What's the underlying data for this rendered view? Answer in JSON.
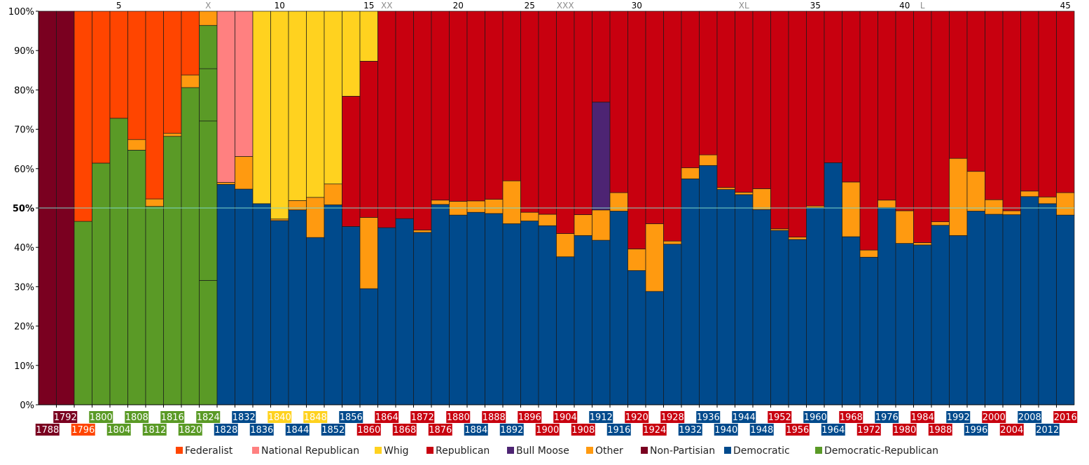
{
  "chart_data": {
    "type": "bar",
    "stacked": true,
    "ylim": [
      0,
      100
    ],
    "y_ticks": [
      "0%",
      "10%",
      "20%",
      "30%",
      "40%",
      "50%",
      "60%",
      "70%",
      "80%",
      "90%",
      "100%"
    ],
    "reference_line": 50,
    "ordinal_labels": [
      {
        "index": 4,
        "text": "5"
      },
      {
        "index": 9,
        "text": "X"
      },
      {
        "index": 13,
        "text": "10"
      },
      {
        "index": 18,
        "text": "15"
      },
      {
        "index": 19,
        "text": "XX"
      },
      {
        "index": 23,
        "text": "20"
      },
      {
        "index": 27,
        "text": "25"
      },
      {
        "index": 29,
        "text": "XXX"
      },
      {
        "index": 33,
        "text": "30"
      },
      {
        "index": 39,
        "text": "XL"
      },
      {
        "index": 43,
        "text": "35"
      },
      {
        "index": 48,
        "text": "40"
      },
      {
        "index": 49,
        "text": "L"
      },
      {
        "index": 57,
        "text": "45"
      }
    ],
    "parties": [
      {
        "key": "fed",
        "name": "Federalist",
        "color": "#ff4500"
      },
      {
        "key": "nr",
        "name": "National Republican",
        "color": "#ff8080"
      },
      {
        "key": "whig",
        "name": "Whig",
        "color": "#ffd21f"
      },
      {
        "key": "rep",
        "name": "Republican",
        "color": "#c8000f"
      },
      {
        "key": "bm",
        "name": "Bull Moose",
        "color": "#4d2473"
      },
      {
        "key": "oth",
        "name": "Other",
        "color": "#ff9a10"
      },
      {
        "key": "np",
        "name": "Non-Partisian",
        "color": "#7a0020"
      },
      {
        "key": "dem",
        "name": "Democratic",
        "color": "#004a8c"
      },
      {
        "key": "dr",
        "name": "Democratic-Republican",
        "color": "#5a9a26"
      }
    ],
    "elections": [
      {
        "year": "1788",
        "winner": "np",
        "segments": [
          [
            "np",
            100
          ]
        ]
      },
      {
        "year": "1792",
        "winner": "np",
        "segments": [
          [
            "np",
            100
          ]
        ]
      },
      {
        "year": "1796",
        "winner": "fed",
        "segments": [
          [
            "dr",
            46.6
          ],
          [
            "fed",
            53.4
          ]
        ]
      },
      {
        "year": "1800",
        "winner": "dr",
        "segments": [
          [
            "dr",
            61.4
          ],
          [
            "fed",
            38.6
          ]
        ]
      },
      {
        "year": "1804",
        "winner": "dr",
        "segments": [
          [
            "dr",
            72.8
          ],
          [
            "fed",
            27.2
          ]
        ]
      },
      {
        "year": "1808",
        "winner": "dr",
        "segments": [
          [
            "dr",
            64.7
          ],
          [
            "oth",
            2.7
          ],
          [
            "fed",
            32.6
          ]
        ]
      },
      {
        "year": "1812",
        "winner": "dr",
        "segments": [
          [
            "dr",
            50.4
          ],
          [
            "oth",
            1.9
          ],
          [
            "fed",
            47.7
          ]
        ]
      },
      {
        "year": "1816",
        "winner": "dr",
        "segments": [
          [
            "dr",
            68.2
          ],
          [
            "oth",
            0.8
          ],
          [
            "fed",
            31.0
          ]
        ]
      },
      {
        "year": "1820",
        "winner": "dr",
        "segments": [
          [
            "dr",
            80.6
          ],
          [
            "oth",
            3.2
          ],
          [
            "fed",
            16.2
          ]
        ]
      },
      {
        "year": "1824",
        "winner": "dr",
        "segments": [
          [
            "dr",
            31.6
          ],
          [
            "dr",
            40.5
          ],
          [
            "dr",
            13.3
          ],
          [
            "dr",
            11.0
          ],
          [
            "oth",
            3.6
          ]
        ]
      },
      {
        "year": "1828",
        "winner": "dem",
        "segments": [
          [
            "dem",
            56.0
          ],
          [
            "oth",
            0.5
          ],
          [
            "nr",
            43.5
          ]
        ]
      },
      {
        "year": "1832",
        "winner": "dem",
        "segments": [
          [
            "dem",
            54.8
          ],
          [
            "oth",
            8.3
          ],
          [
            "nr",
            36.9
          ]
        ]
      },
      {
        "year": "1836",
        "winner": "dem",
        "segments": [
          [
            "dem",
            51.1
          ],
          [
            "whig",
            48.9
          ]
        ]
      },
      {
        "year": "1840",
        "winner": "whig",
        "segments": [
          [
            "dem",
            46.8
          ],
          [
            "oth",
            0.4
          ],
          [
            "whig",
            52.8
          ]
        ]
      },
      {
        "year": "1844",
        "winner": "dem",
        "segments": [
          [
            "dem",
            49.5
          ],
          [
            "oth",
            2.4
          ],
          [
            "whig",
            48.1
          ]
        ]
      },
      {
        "year": "1848",
        "winner": "whig",
        "segments": [
          [
            "dem",
            42.5
          ],
          [
            "oth",
            10.2
          ],
          [
            "whig",
            47.3
          ]
        ]
      },
      {
        "year": "1852",
        "winner": "dem",
        "segments": [
          [
            "dem",
            50.8
          ],
          [
            "oth",
            5.3
          ],
          [
            "whig",
            43.9
          ]
        ]
      },
      {
        "year": "1856",
        "winner": "dem",
        "segments": [
          [
            "dem",
            45.3
          ],
          [
            "rep",
            33.1
          ],
          [
            "whig",
            21.6
          ]
        ]
      },
      {
        "year": "1860",
        "winner": "rep",
        "segments": [
          [
            "dem",
            29.5
          ],
          [
            "oth",
            18.1
          ],
          [
            "rep",
            39.7
          ],
          [
            "whig",
            12.7
          ]
        ]
      },
      {
        "year": "1864",
        "winner": "rep",
        "segments": [
          [
            "dem",
            45.0
          ],
          [
            "rep",
            55.0
          ]
        ]
      },
      {
        "year": "1868",
        "winner": "rep",
        "segments": [
          [
            "dem",
            47.3
          ],
          [
            "rep",
            52.7
          ]
        ]
      },
      {
        "year": "1872",
        "winner": "rep",
        "segments": [
          [
            "dem",
            43.8
          ],
          [
            "oth",
            0.6
          ],
          [
            "rep",
            55.6
          ]
        ]
      },
      {
        "year": "1876",
        "winner": "rep",
        "segments": [
          [
            "dem",
            50.9
          ],
          [
            "oth",
            1.1
          ],
          [
            "rep",
            48.0
          ]
        ]
      },
      {
        "year": "1880",
        "winner": "rep",
        "segments": [
          [
            "dem",
            48.2
          ],
          [
            "oth",
            3.5
          ],
          [
            "rep",
            48.3
          ]
        ]
      },
      {
        "year": "1884",
        "winner": "dem",
        "segments": [
          [
            "dem",
            48.9
          ],
          [
            "oth",
            2.9
          ],
          [
            "rep",
            48.2
          ]
        ]
      },
      {
        "year": "1888",
        "winner": "rep",
        "segments": [
          [
            "dem",
            48.6
          ],
          [
            "oth",
            3.6
          ],
          [
            "rep",
            47.8
          ]
        ]
      },
      {
        "year": "1892",
        "winner": "dem",
        "segments": [
          [
            "dem",
            46.0
          ],
          [
            "oth",
            10.9
          ],
          [
            "rep",
            43.1
          ]
        ]
      },
      {
        "year": "1896",
        "winner": "rep",
        "segments": [
          [
            "dem",
            46.7
          ],
          [
            "oth",
            2.2
          ],
          [
            "rep",
            51.1
          ]
        ]
      },
      {
        "year": "1900",
        "winner": "rep",
        "segments": [
          [
            "dem",
            45.5
          ],
          [
            "oth",
            2.9
          ],
          [
            "rep",
            51.6
          ]
        ]
      },
      {
        "year": "1904",
        "winner": "rep",
        "segments": [
          [
            "dem",
            37.6
          ],
          [
            "oth",
            5.9
          ],
          [
            "rep",
            56.5
          ]
        ]
      },
      {
        "year": "1908",
        "winner": "rep",
        "segments": [
          [
            "dem",
            43.0
          ],
          [
            "oth",
            5.3
          ],
          [
            "rep",
            51.7
          ]
        ]
      },
      {
        "year": "1912",
        "winner": "dem",
        "segments": [
          [
            "dem",
            41.8
          ],
          [
            "oth",
            7.7
          ],
          [
            "bm",
            27.4
          ],
          [
            "rep",
            23.1
          ]
        ]
      },
      {
        "year": "1916",
        "winner": "dem",
        "segments": [
          [
            "dem",
            49.2
          ],
          [
            "oth",
            4.7
          ],
          [
            "rep",
            46.1
          ]
        ]
      },
      {
        "year": "1920",
        "winner": "rep",
        "segments": [
          [
            "dem",
            34.1
          ],
          [
            "oth",
            5.5
          ],
          [
            "rep",
            60.4
          ]
        ]
      },
      {
        "year": "1924",
        "winner": "rep",
        "segments": [
          [
            "dem",
            28.8
          ],
          [
            "oth",
            17.2
          ],
          [
            "rep",
            54.0
          ]
        ]
      },
      {
        "year": "1928",
        "winner": "rep",
        "segments": [
          [
            "dem",
            40.8
          ],
          [
            "oth",
            0.8
          ],
          [
            "rep",
            58.4
          ]
        ]
      },
      {
        "year": "1932",
        "winner": "dem",
        "segments": [
          [
            "dem",
            57.4
          ],
          [
            "oth",
            2.8
          ],
          [
            "rep",
            39.8
          ]
        ]
      },
      {
        "year": "1936",
        "winner": "dem",
        "segments": [
          [
            "dem",
            60.8
          ],
          [
            "oth",
            2.7
          ],
          [
            "rep",
            36.5
          ]
        ]
      },
      {
        "year": "1940",
        "winner": "dem",
        "segments": [
          [
            "dem",
            54.7
          ],
          [
            "oth",
            0.5
          ],
          [
            "rep",
            44.8
          ]
        ]
      },
      {
        "year": "1944",
        "winner": "dem",
        "segments": [
          [
            "dem",
            53.4
          ],
          [
            "oth",
            0.6
          ],
          [
            "rep",
            46.0
          ]
        ]
      },
      {
        "year": "1948",
        "winner": "dem",
        "segments": [
          [
            "dem",
            49.6
          ],
          [
            "oth",
            5.3
          ],
          [
            "rep",
            45.1
          ]
        ]
      },
      {
        "year": "1952",
        "winner": "rep",
        "segments": [
          [
            "dem",
            44.3
          ],
          [
            "oth",
            0.4
          ],
          [
            "rep",
            55.3
          ]
        ]
      },
      {
        "year": "1956",
        "winner": "rep",
        "segments": [
          [
            "dem",
            42.0
          ],
          [
            "oth",
            0.6
          ],
          [
            "rep",
            57.4
          ]
        ]
      },
      {
        "year": "1960",
        "winner": "dem",
        "segments": [
          [
            "dem",
            50.1
          ],
          [
            "oth",
            0.4
          ],
          [
            "rep",
            49.5
          ]
        ]
      },
      {
        "year": "1964",
        "winner": "dem",
        "segments": [
          [
            "dem",
            61.5
          ],
          [
            "rep",
            38.5
          ]
        ]
      },
      {
        "year": "1968",
        "winner": "rep",
        "segments": [
          [
            "dem",
            42.7
          ],
          [
            "oth",
            13.9
          ],
          [
            "rep",
            43.4
          ]
        ]
      },
      {
        "year": "1972",
        "winner": "rep",
        "segments": [
          [
            "dem",
            37.5
          ],
          [
            "oth",
            1.8
          ],
          [
            "rep",
            60.7
          ]
        ]
      },
      {
        "year": "1976",
        "winner": "dem",
        "segments": [
          [
            "dem",
            50.1
          ],
          [
            "oth",
            1.9
          ],
          [
            "rep",
            48.0
          ]
        ]
      },
      {
        "year": "1980",
        "winner": "rep",
        "segments": [
          [
            "dem",
            41.0
          ],
          [
            "oth",
            8.3
          ],
          [
            "rep",
            50.7
          ]
        ]
      },
      {
        "year": "1984",
        "winner": "rep",
        "segments": [
          [
            "dem",
            40.6
          ],
          [
            "oth",
            0.6
          ],
          [
            "rep",
            58.8
          ]
        ]
      },
      {
        "year": "1988",
        "winner": "rep",
        "segments": [
          [
            "dem",
            45.6
          ],
          [
            "oth",
            0.9
          ],
          [
            "rep",
            53.5
          ]
        ]
      },
      {
        "year": "1992",
        "winner": "dem",
        "segments": [
          [
            "dem",
            43.0
          ],
          [
            "oth",
            19.6
          ],
          [
            "rep",
            37.4
          ]
        ]
      },
      {
        "year": "1996",
        "winner": "dem",
        "segments": [
          [
            "dem",
            49.2
          ],
          [
            "oth",
            10.1
          ],
          [
            "rep",
            40.7
          ]
        ]
      },
      {
        "year": "2000",
        "winner": "rep",
        "segments": [
          [
            "dem",
            48.4
          ],
          [
            "oth",
            3.7
          ],
          [
            "rep",
            47.9
          ]
        ]
      },
      {
        "year": "2004",
        "winner": "rep",
        "segments": [
          [
            "dem",
            48.3
          ],
          [
            "oth",
            1.0
          ],
          [
            "rep",
            50.7
          ]
        ]
      },
      {
        "year": "2008",
        "winner": "dem",
        "segments": [
          [
            "dem",
            52.9
          ],
          [
            "oth",
            1.4
          ],
          [
            "rep",
            45.7
          ]
        ]
      },
      {
        "year": "2012",
        "winner": "dem",
        "segments": [
          [
            "dem",
            51.1
          ],
          [
            "oth",
            1.7
          ],
          [
            "rep",
            47.2
          ]
        ]
      },
      {
        "year": "2016",
        "winner": "rep",
        "segments": [
          [
            "dem",
            48.2
          ],
          [
            "oth",
            5.7
          ],
          [
            "rep",
            46.1
          ]
        ]
      }
    ]
  }
}
